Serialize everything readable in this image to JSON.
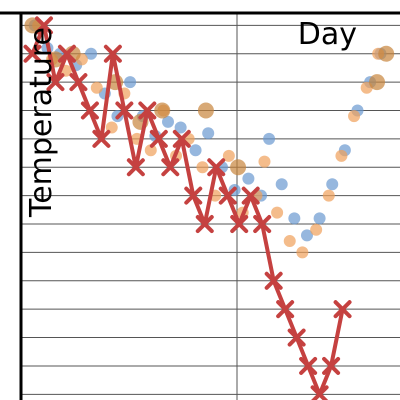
{
  "chart_data": {
    "type": "scatter",
    "xlabel": "Day",
    "ylabel": "Temperature",
    "grid": true,
    "xlim": [
      0,
      33
    ],
    "ylim": [
      -13.2,
      0.4
    ],
    "colors": {
      "series_blue": "#6a99d0",
      "series_orange": "#f0a05a",
      "series_brown": "#c8843c",
      "line": "#c54140",
      "axis": "#000000",
      "grid": "#555555"
    },
    "series": [
      {
        "style": "line-x",
        "x": [
          1,
          2,
          3,
          4,
          5,
          6,
          7,
          8,
          9,
          10,
          11,
          12,
          13,
          14,
          15,
          16,
          17,
          18,
          19,
          20,
          21,
          22,
          23,
          24,
          25,
          26,
          27,
          28
        ],
        "y": [
          -1,
          0,
          -2,
          -1,
          -2,
          -3,
          -4,
          -1,
          -3,
          -5,
          -3,
          -4,
          -5,
          -4,
          -6,
          -7,
          -5,
          -6,
          -7,
          -6,
          -7,
          -9,
          -10,
          -11,
          -12,
          -13,
          -12,
          -10
        ]
      },
      {
        "style": "scatter-blue",
        "x": [
          1.2,
          2.3,
          3.4,
          4.8,
          6.1,
          7.3,
          8.4,
          9.5,
          10.6,
          11.7,
          12.8,
          13.9,
          15.2,
          16.3,
          17.5,
          18.6,
          19.8,
          20.9,
          21.6,
          22.7,
          23.8,
          24.9,
          26.0,
          27.1,
          28.2,
          29.3,
          30.4,
          31.3
        ],
        "y": [
          0.0,
          -0.8,
          -1.0,
          -1.4,
          -1.0,
          -2.4,
          -3.2,
          -2.0,
          -3.2,
          -3.9,
          -3.4,
          -3.6,
          -4.4,
          -3.8,
          -5.0,
          -5.8,
          -5.4,
          -6.0,
          -4.0,
          -5.6,
          -6.8,
          -7.4,
          -6.8,
          -5.6,
          -4.4,
          -3.0,
          -2.0,
          -1.0
        ]
      },
      {
        "style": "scatter-orange",
        "x": [
          1.5,
          2.7,
          3.9,
          5.3,
          6.6,
          7.9,
          9.0,
          10.1,
          11.3,
          12.4,
          13.5,
          14.6,
          15.8,
          16.9,
          18.1,
          19.3,
          20.5,
          21.2,
          22.3,
          23.4,
          24.5,
          25.7,
          26.8,
          27.9,
          29.0,
          30.1,
          31.1
        ],
        "y": [
          0.0,
          -1.2,
          -1.6,
          -1.2,
          -2.2,
          -3.6,
          -2.4,
          -4.0,
          -4.4,
          -3.0,
          -4.6,
          -4.0,
          -5.0,
          -6.0,
          -4.6,
          -6.6,
          -6.0,
          -4.8,
          -6.6,
          -7.6,
          -8.0,
          -7.2,
          -6.0,
          -4.6,
          -3.2,
          -2.2,
          -1.0
        ]
      },
      {
        "style": "scatter-brown",
        "x": [
          1.0,
          3.0,
          4.5,
          8.2,
          10.4,
          12.3,
          16.1,
          18.9,
          31.0,
          31.8
        ],
        "y": [
          0.0,
          -1.2,
          -1.0,
          -2.0,
          -3.4,
          -3.0,
          -3.0,
          -5.0,
          -2.0,
          -1.0
        ]
      }
    ]
  }
}
